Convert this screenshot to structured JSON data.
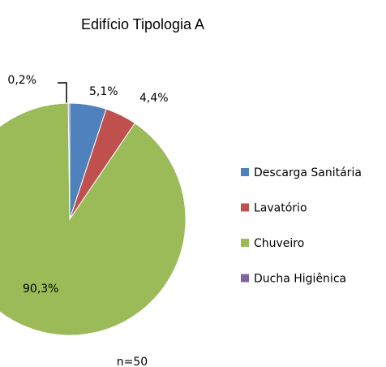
{
  "chart_data": {
    "type": "pie",
    "title": "Edifício Tipologia A",
    "categories": [
      "Descarga Sanitária",
      "Lavatório",
      "Chuveiro",
      "Ducha Higiênica"
    ],
    "values": [
      5.1,
      4.4,
      90.3,
      0.2
    ],
    "value_labels": [
      "5,1%",
      "4,4%",
      "90,3%",
      "0,2%"
    ],
    "colors": [
      "#4f81bd",
      "#c0504d",
      "#9bbb59",
      "#8064a2"
    ],
    "annotation": "n=50"
  }
}
